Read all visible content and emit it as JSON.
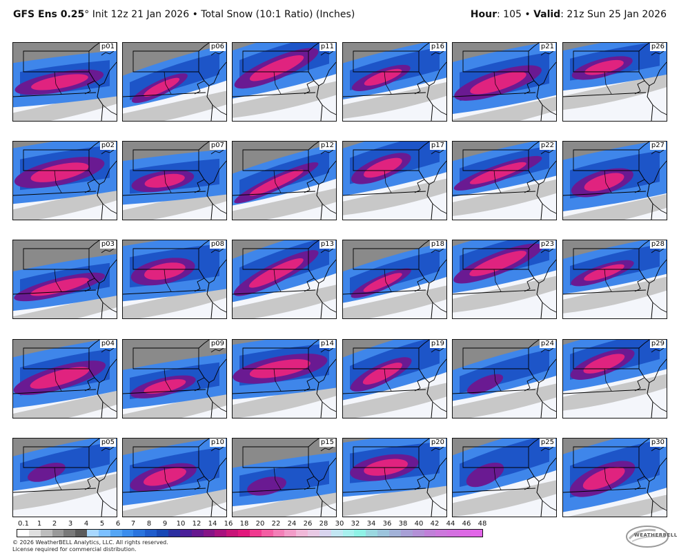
{
  "header": {
    "model": "GFS Ens 0.25",
    "degree": "°",
    "init": "Init 12z 21 Jan 2026",
    "bullet": "•",
    "field": "Total Snow (10:1 Ratio) (Inches)",
    "hour_label": "Hour",
    "hour_value": ": 105",
    "valid_label": "Valid",
    "valid_value": ": 21z Sun 25 Jan 2026"
  },
  "panels": [
    [
      "p01",
      "p06",
      "p11",
      "p16",
      "p21",
      "p26"
    ],
    [
      "p02",
      "p07",
      "p12",
      "p17",
      "p22",
      "p27"
    ],
    [
      "p03",
      "p08",
      "p13",
      "p18",
      "p23",
      "p28"
    ],
    [
      "p04",
      "p09",
      "p14",
      "p19",
      "p24",
      "p29"
    ],
    [
      "p05",
      "p10",
      "p15",
      "p20",
      "p25",
      "p30"
    ]
  ],
  "legend": {
    "ticks": [
      "0.1",
      "1",
      "2",
      "3",
      "4",
      "5",
      "6",
      "7",
      "8",
      "9",
      "10",
      "12",
      "14",
      "16",
      "18",
      "20",
      "22",
      "24",
      "26",
      "28",
      "30",
      "32",
      "34",
      "36",
      "38",
      "40",
      "42",
      "44",
      "46",
      "48"
    ],
    "colors": [
      "#ffffff",
      "#e0e0e0",
      "#bdbdbd",
      "#9a9a9a",
      "#7a7a7a",
      "#5c5c5c",
      "#a8d8ff",
      "#7cc0ff",
      "#55a6f5",
      "#3b8ded",
      "#2a74de",
      "#1f5ccc",
      "#1747b5",
      "#2c2fa0",
      "#4a1f98",
      "#67188f",
      "#861486",
      "#a8127e",
      "#c81478",
      "#e2187c",
      "#f03a8f",
      "#f45ea3",
      "#f37fb7",
      "#f29cc8",
      "#f0b8d8",
      "#e8c9e4",
      "#d8d4ee",
      "#c2e6f2",
      "#a8f0ee",
      "#8ff2e6",
      "#9ad8e0",
      "#9cc4dc",
      "#a2b2d8",
      "#a8a0d6",
      "#b390d6",
      "#c080d8",
      "#cc78dc",
      "#d470e0",
      "#dc6ae4",
      "#e266e8"
    ]
  },
  "footer": {
    "line1": "© 2026 WeatherBELL Analytics, LLC. All rights reserved.",
    "line2": "License required for commercial distribution."
  },
  "logo": {
    "text": "WEATHERBELL",
    "name": "weatherbell-logo"
  }
}
